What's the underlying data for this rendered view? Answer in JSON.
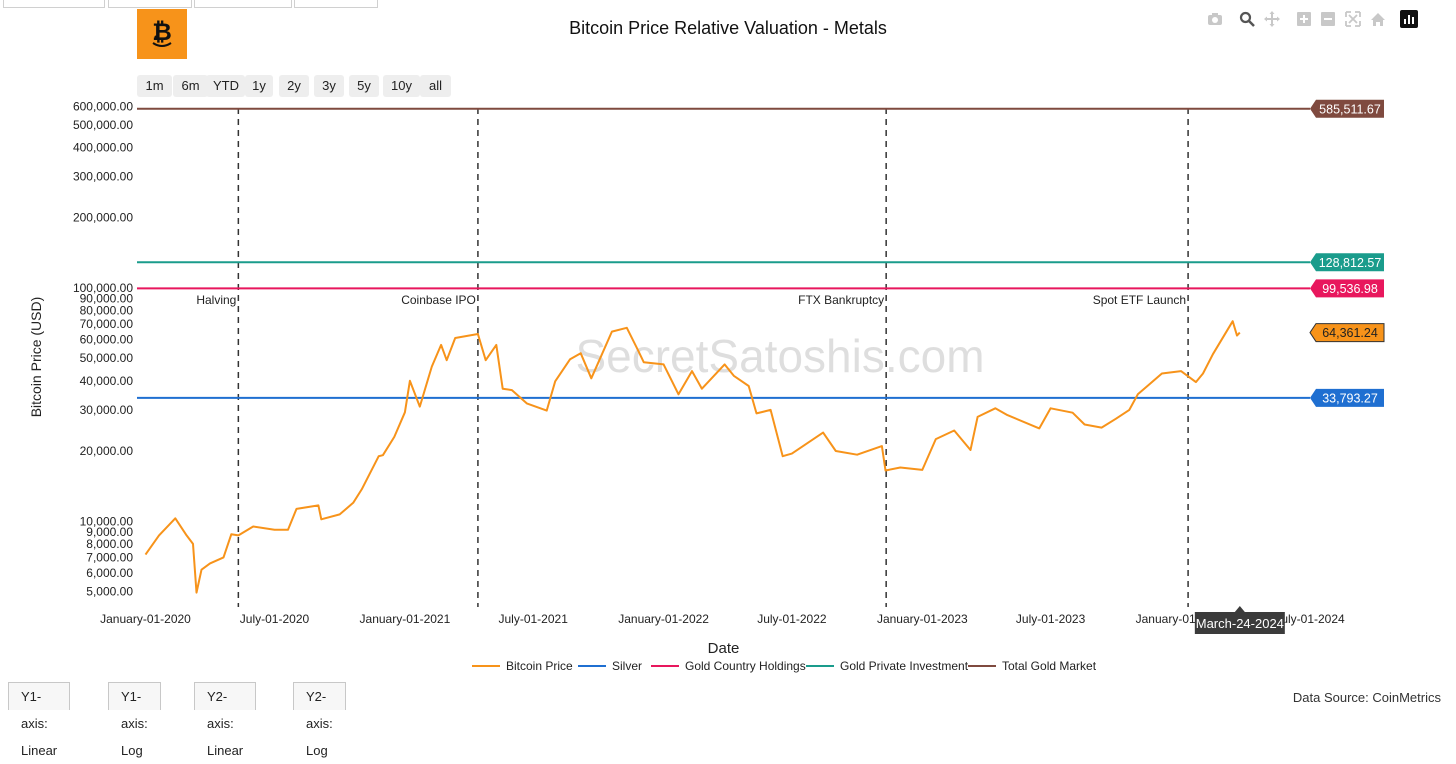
{
  "header": {
    "title": "Bitcoin Price Relative Valuation - Metals"
  },
  "range_buttons": [
    "1m",
    "6m",
    "YTD",
    "1y",
    "2y",
    "3y",
    "5y",
    "10y",
    "all"
  ],
  "modebar": {
    "icons": [
      "camera-icon",
      "zoom-icon",
      "pan-icon",
      "zoom-in-icon",
      "zoom-out-icon",
      "autoscale-icon",
      "home-icon",
      "plotly-logo-icon"
    ]
  },
  "bottom_tabs": [
    "Y1-axis: Linear",
    "Y1-axis: Log",
    "Y2-axis: Linear",
    "Y2-axis: Log"
  ],
  "footer": {
    "data_source": "Data Source: CoinMetrics"
  },
  "watermark": "SecretSatoshis.com",
  "colors": {
    "bitcoin": "#f7931a",
    "silver": "#1f6fd1",
    "gold_country": "#e8175d",
    "gold_private": "#1a9c8c",
    "total_gold": "#7f4a3f",
    "accent": "#f7931a"
  },
  "chart_data": {
    "type": "line",
    "title": "Bitcoin Price Relative Valuation - Metals",
    "xlabel": "Date",
    "ylabel": "Bitcoin Price (USD)",
    "y_scale": "log",
    "xlim": [
      "2019-12-20",
      "2024-07-01"
    ],
    "ylim": [
      4600,
      620000
    ],
    "x_ticks": [
      "January-01-2020",
      "July-01-2020",
      "January-01-2021",
      "July-01-2021",
      "January-01-2022",
      "July-01-2022",
      "January-01-2023",
      "July-01-2023",
      "January-01-2024",
      "July-01-2024"
    ],
    "y_tick_labels": [
      "5,000.00",
      "6,000.00",
      "7,000.00",
      "8,000.00",
      "9,000.00",
      "10,000.00",
      "20,000.00",
      "30,000.00",
      "40,000.00",
      "50,000.00",
      "60,000.00",
      "70,000.00",
      "80,000.00",
      "90,000.00",
      "100,000.00",
      "200,000.00",
      "300,000.00",
      "400,000.00",
      "500,000.00",
      "600,000.00"
    ],
    "legend_position": "bottom",
    "grid": false,
    "events": [
      {
        "label": "Halving",
        "date": "2020-05-11"
      },
      {
        "label": "Coinbase IPO",
        "date": "2021-04-14"
      },
      {
        "label": "FTX Bankruptcy",
        "date": "2022-11-11"
      },
      {
        "label": "Spot ETF Launch",
        "date": "2024-01-11"
      }
    ],
    "hover_label": "March-24-2024",
    "series": [
      {
        "name": "Bitcoin Price",
        "last_label": "64,361.24",
        "points": [
          [
            "2020-01-01",
            7200
          ],
          [
            "2020-01-20",
            8700
          ],
          [
            "2020-02-12",
            10300
          ],
          [
            "2020-02-28",
            8700
          ],
          [
            "2020-03-08",
            8000
          ],
          [
            "2020-03-13",
            4950
          ],
          [
            "2020-03-20",
            6200
          ],
          [
            "2020-04-01",
            6600
          ],
          [
            "2020-04-20",
            7000
          ],
          [
            "2020-05-01",
            8800
          ],
          [
            "2020-05-11",
            8700
          ],
          [
            "2020-06-01",
            9500
          ],
          [
            "2020-07-01",
            9200
          ],
          [
            "2020-07-20",
            9200
          ],
          [
            "2020-08-01",
            11300
          ],
          [
            "2020-09-01",
            11700
          ],
          [
            "2020-09-05",
            10200
          ],
          [
            "2020-10-01",
            10700
          ],
          [
            "2020-10-20",
            12000
          ],
          [
            "2020-11-01",
            13700
          ],
          [
            "2020-11-25",
            19000
          ],
          [
            "2020-12-01",
            19200
          ],
          [
            "2020-12-17",
            23000
          ],
          [
            "2021-01-01",
            29300
          ],
          [
            "2021-01-08",
            40000
          ],
          [
            "2021-01-22",
            31000
          ],
          [
            "2021-02-08",
            46000
          ],
          [
            "2021-02-21",
            57000
          ],
          [
            "2021-03-01",
            49000
          ],
          [
            "2021-03-13",
            61000
          ],
          [
            "2021-04-14",
            63500
          ],
          [
            "2021-04-25",
            49000
          ],
          [
            "2021-05-10",
            57000
          ],
          [
            "2021-05-19",
            37000
          ],
          [
            "2021-06-01",
            36500
          ],
          [
            "2021-06-22",
            32000
          ],
          [
            "2021-07-20",
            29800
          ],
          [
            "2021-08-01",
            39800
          ],
          [
            "2021-08-22",
            49500
          ],
          [
            "2021-09-06",
            52500
          ],
          [
            "2021-09-21",
            41000
          ],
          [
            "2021-10-01",
            48000
          ],
          [
            "2021-10-20",
            65000
          ],
          [
            "2021-11-10",
            67500
          ],
          [
            "2021-11-26",
            54000
          ],
          [
            "2021-12-04",
            48000
          ],
          [
            "2022-01-01",
            47000
          ],
          [
            "2022-01-22",
            35000
          ],
          [
            "2022-02-10",
            44000
          ],
          [
            "2022-02-24",
            37000
          ],
          [
            "2022-03-28",
            47000
          ],
          [
            "2022-04-10",
            42000
          ],
          [
            "2022-05-01",
            38000
          ],
          [
            "2022-05-12",
            29000
          ],
          [
            "2022-06-01",
            30000
          ],
          [
            "2022-06-18",
            19000
          ],
          [
            "2022-07-01",
            19500
          ],
          [
            "2022-08-14",
            24000
          ],
          [
            "2022-09-01",
            20000
          ],
          [
            "2022-10-01",
            19300
          ],
          [
            "2022-11-05",
            21000
          ],
          [
            "2022-11-10",
            16500
          ],
          [
            "2022-12-01",
            17000
          ],
          [
            "2023-01-01",
            16600
          ],
          [
            "2023-01-20",
            22500
          ],
          [
            "2023-02-15",
            24500
          ],
          [
            "2023-03-10",
            20200
          ],
          [
            "2023-03-20",
            28000
          ],
          [
            "2023-04-14",
            30500
          ],
          [
            "2023-05-01",
            28500
          ],
          [
            "2023-06-15",
            25000
          ],
          [
            "2023-07-01",
            30500
          ],
          [
            "2023-08-01",
            29200
          ],
          [
            "2023-08-18",
            26000
          ],
          [
            "2023-09-11",
            25200
          ],
          [
            "2023-10-01",
            27500
          ],
          [
            "2023-10-20",
            30000
          ],
          [
            "2023-11-01",
            35000
          ],
          [
            "2023-12-05",
            43000
          ],
          [
            "2024-01-01",
            44000
          ],
          [
            "2024-01-22",
            39500
          ],
          [
            "2024-02-01",
            43000
          ],
          [
            "2024-02-15",
            52000
          ],
          [
            "2024-03-14",
            72000
          ],
          [
            "2024-03-20",
            62500
          ],
          [
            "2024-03-24",
            64361.24
          ]
        ]
      },
      {
        "name": "Silver",
        "value": 33793.27,
        "last_label": "33,793.27"
      },
      {
        "name": "Gold Country Holdings",
        "value": 99536.98,
        "last_label": "99,536.98"
      },
      {
        "name": "Gold Private Investment",
        "value": 128812.57,
        "last_label": "128,812.57"
      },
      {
        "name": "Total Gold Market",
        "value": 585511.67,
        "last_label": "585,511.67"
      }
    ]
  }
}
